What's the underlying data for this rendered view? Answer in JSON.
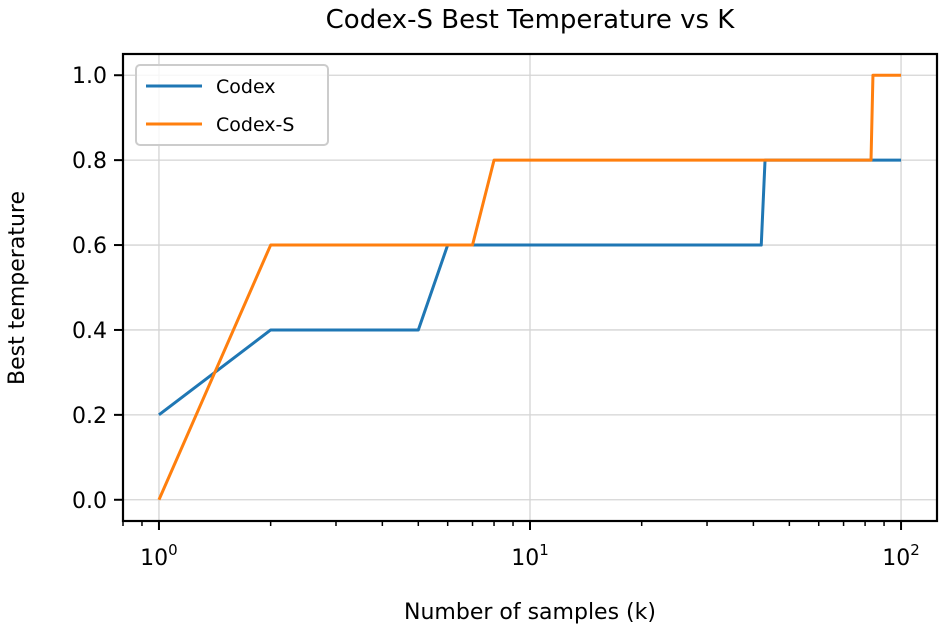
{
  "chart_data": {
    "type": "line",
    "title": "Codex-S Best Temperature vs K",
    "xlabel": "Number of samples (k)",
    "ylabel": "Best temperature",
    "xscale": "log",
    "xlim": [
      0.8,
      125
    ],
    "ylim": [
      -0.05,
      1.05
    ],
    "grid": true,
    "legend_position": "upper left",
    "x_ticks": [
      {
        "value": 1,
        "base": "10",
        "exp": "0"
      },
      {
        "value": 10,
        "base": "10",
        "exp": "1"
      },
      {
        "value": 100,
        "base": "10",
        "exp": "2"
      }
    ],
    "y_ticks": [
      {
        "value": 0.0,
        "label": "0.0"
      },
      {
        "value": 0.2,
        "label": "0.2"
      },
      {
        "value": 0.4,
        "label": "0.4"
      },
      {
        "value": 0.6,
        "label": "0.6"
      },
      {
        "value": 0.8,
        "label": "0.8"
      },
      {
        "value": 1.0,
        "label": "1.0"
      }
    ],
    "series": [
      {
        "name": "Codex",
        "color": "#1f77b4",
        "points": [
          [
            1,
            0.2
          ],
          [
            2,
            0.4
          ],
          [
            3,
            0.4
          ],
          [
            4,
            0.4
          ],
          [
            5,
            0.4
          ],
          [
            6,
            0.6
          ],
          [
            7,
            0.6
          ],
          [
            8,
            0.6
          ],
          [
            9,
            0.6
          ],
          [
            10,
            0.6
          ],
          [
            20,
            0.6
          ],
          [
            30,
            0.6
          ],
          [
            42,
            0.6
          ],
          [
            43,
            0.8
          ],
          [
            60,
            0.8
          ],
          [
            80,
            0.8
          ],
          [
            100,
            0.8
          ]
        ]
      },
      {
        "name": "Codex-S",
        "color": "#ff7f0e",
        "points": [
          [
            1,
            0.0
          ],
          [
            2,
            0.6
          ],
          [
            3,
            0.6
          ],
          [
            4,
            0.6
          ],
          [
            5,
            0.6
          ],
          [
            6,
            0.6
          ],
          [
            7,
            0.6
          ],
          [
            8,
            0.8
          ],
          [
            9,
            0.8
          ],
          [
            10,
            0.8
          ],
          [
            20,
            0.8
          ],
          [
            40,
            0.8
          ],
          [
            60,
            0.8
          ],
          [
            83,
            0.8
          ],
          [
            84,
            1.0
          ],
          [
            90,
            1.0
          ],
          [
            100,
            1.0
          ]
        ]
      }
    ]
  }
}
